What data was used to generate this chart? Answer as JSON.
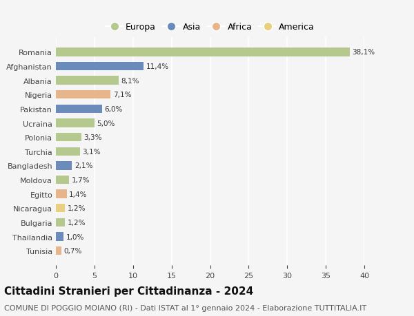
{
  "countries": [
    "Romania",
    "Afghanistan",
    "Albania",
    "Nigeria",
    "Pakistan",
    "Ucraina",
    "Polonia",
    "Turchia",
    "Bangladesh",
    "Moldova",
    "Egitto",
    "Nicaragua",
    "Bulgaria",
    "Thailandia",
    "Tunisia"
  ],
  "values": [
    38.1,
    11.4,
    8.1,
    7.1,
    6.0,
    5.0,
    3.3,
    3.1,
    2.1,
    1.7,
    1.4,
    1.2,
    1.2,
    1.0,
    0.7
  ],
  "labels": [
    "38,1%",
    "11,4%",
    "8,1%",
    "7,1%",
    "6,0%",
    "5,0%",
    "3,3%",
    "3,1%",
    "2,1%",
    "1,7%",
    "1,4%",
    "1,2%",
    "1,2%",
    "1,0%",
    "0,7%"
  ],
  "continents": [
    "Europa",
    "Asia",
    "Europa",
    "Africa",
    "Asia",
    "Europa",
    "Europa",
    "Europa",
    "Asia",
    "Europa",
    "Africa",
    "America",
    "Europa",
    "Asia",
    "Africa"
  ],
  "continent_colors": {
    "Europa": "#b5c98e",
    "Asia": "#6b8cba",
    "Africa": "#e8b48a",
    "America": "#e8d080"
  },
  "legend_order": [
    "Europa",
    "Asia",
    "Africa",
    "America"
  ],
  "title": "Cittadini Stranieri per Cittadinanza - 2024",
  "subtitle": "COMUNE DI POGGIO MOIANO (RI) - Dati ISTAT al 1° gennaio 2024 - Elaborazione TUTTITALIA.IT",
  "xlim": [
    0,
    40
  ],
  "xticks": [
    0,
    5,
    10,
    15,
    20,
    25,
    30,
    35,
    40
  ],
  "background_color": "#f5f5f5",
  "grid_color": "#ffffff",
  "title_fontsize": 11,
  "subtitle_fontsize": 8,
  "label_fontsize": 7.5,
  "tick_fontsize": 8,
  "legend_fontsize": 9
}
